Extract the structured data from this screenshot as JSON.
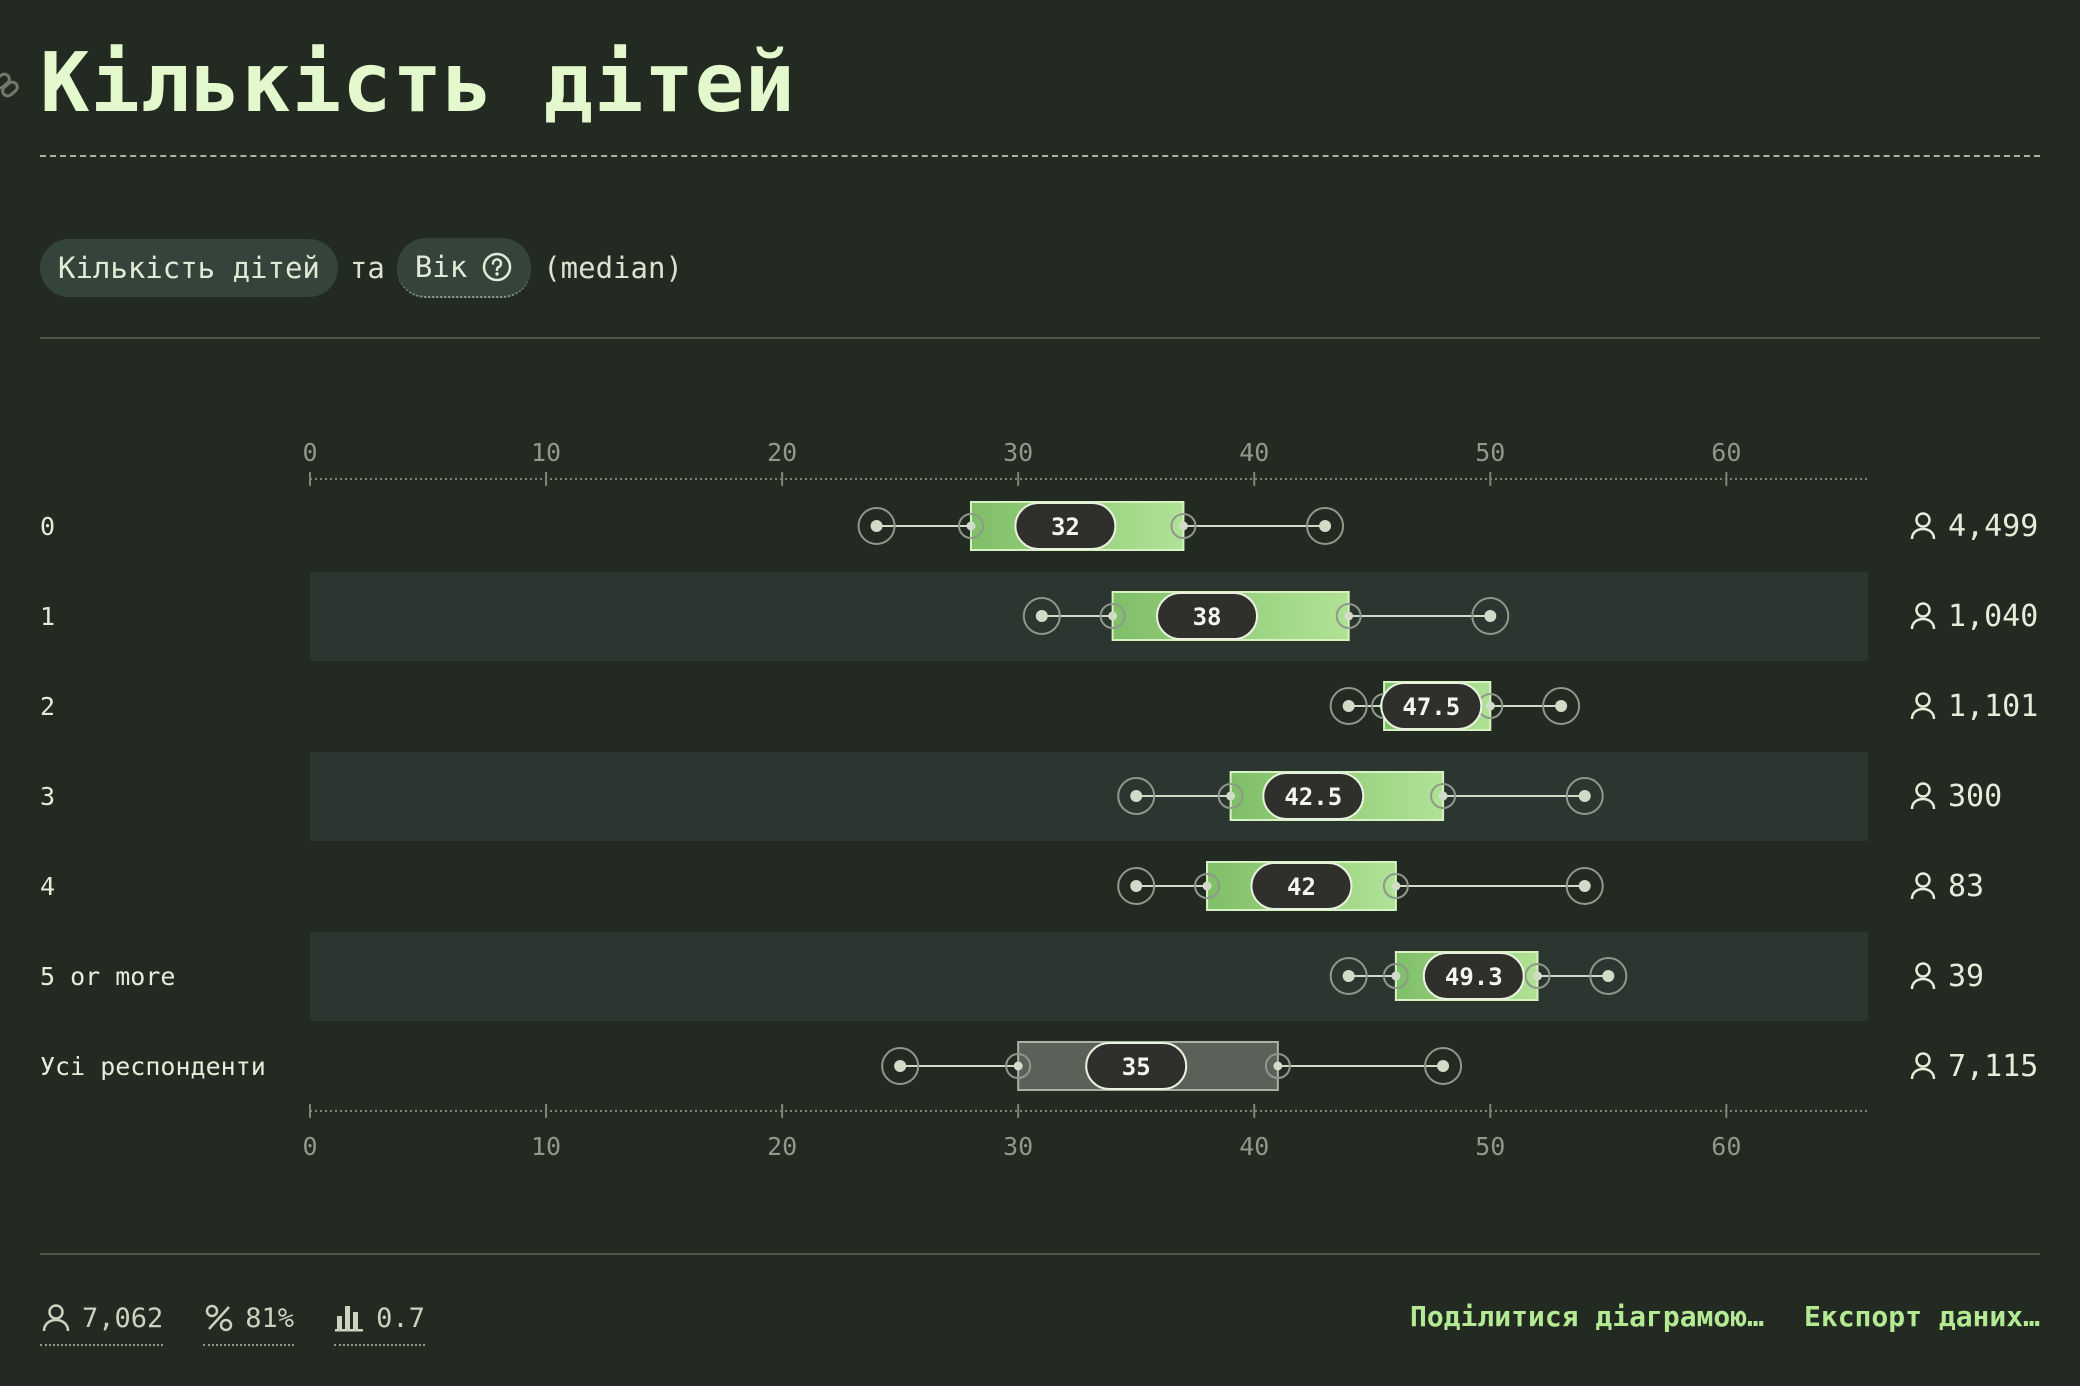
{
  "title": "Кількість дітей",
  "selector": {
    "variable_a": "Кількість дітей",
    "joiner": "та",
    "variable_b": "Вік",
    "stat": "(median)"
  },
  "chart_data": {
    "type": "boxplot",
    "xlim": [
      0,
      66
    ],
    "ticks": [
      0,
      10,
      20,
      30,
      40,
      50,
      60
    ],
    "tick_labels": [
      "0",
      "10",
      "20",
      "30",
      "40",
      "50",
      "60"
    ],
    "rows": [
      {
        "label": "0",
        "min": 24,
        "q1": 28,
        "median": 32,
        "median_label": "32",
        "q3": 37,
        "max": 43,
        "count": "4,499"
      },
      {
        "label": "1",
        "min": 31,
        "q1": 34,
        "median": 38,
        "median_label": "38",
        "q3": 44,
        "max": 50,
        "count": "1,040"
      },
      {
        "label": "2",
        "min": 44,
        "q1": 45.5,
        "median": 47.5,
        "median_label": "47.5",
        "q3": 50,
        "max": 53,
        "count": "1,101"
      },
      {
        "label": "3",
        "min": 35,
        "q1": 39,
        "median": 42.5,
        "median_label": "42.5",
        "q3": 48,
        "max": 54,
        "count": "300"
      },
      {
        "label": "4",
        "min": 35,
        "q1": 38,
        "median": 42,
        "median_label": "42",
        "q3": 46,
        "max": 54,
        "count": "83"
      },
      {
        "label": "5 or more",
        "min": 44,
        "q1": 46,
        "median": 49.3,
        "median_label": "49.3",
        "q3": 52,
        "max": 55,
        "count": "39"
      },
      {
        "label": "Усі респонденти",
        "min": 25,
        "q1": 30,
        "median": 35,
        "median_label": "35",
        "q3": 41,
        "max": 48,
        "count": "7,115",
        "overall": true
      }
    ]
  },
  "footer": {
    "respondents": "7,062",
    "percent": "81%",
    "score": "0.7",
    "share_label": "Поділитися діаграмою…",
    "export_label": "Експорт даних…"
  },
  "colors": {
    "background": "#232a22",
    "band": "#2c3630",
    "box_light": "#b0e296",
    "box_dark": "#7fbf68",
    "overall_box": "#5b6158",
    "median_pill": "#2f302c",
    "accent": "#b4ea94"
  },
  "icons": {
    "link": "link-icon",
    "help": "help-circle-icon",
    "person": "person-icon",
    "percent": "percent-icon",
    "bars": "bar-chart-icon"
  }
}
